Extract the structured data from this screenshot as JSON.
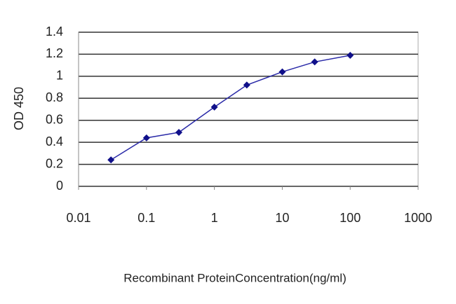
{
  "chart_data": {
    "type": "line",
    "xlabel": "Recombinant ProteinConcentration(ng/ml)",
    "ylabel": "OD 450",
    "x": [
      0.03,
      0.1,
      0.3,
      1,
      3,
      10,
      30,
      100
    ],
    "values": [
      0.24,
      0.44,
      0.49,
      0.72,
      0.92,
      1.04,
      1.13,
      1.19
    ],
    "color": "#2a2aa8",
    "marker_color": "#10108a",
    "xlim": [
      0.01,
      1000
    ],
    "xticks": [
      0.01,
      0.1,
      1,
      10,
      100,
      1000
    ],
    "log_x": true,
    "ylim": [
      0,
      1.4
    ],
    "yticks": [
      0,
      0.2,
      0.4,
      0.6,
      0.8,
      1,
      1.2,
      1.4
    ],
    "grid": true
  }
}
